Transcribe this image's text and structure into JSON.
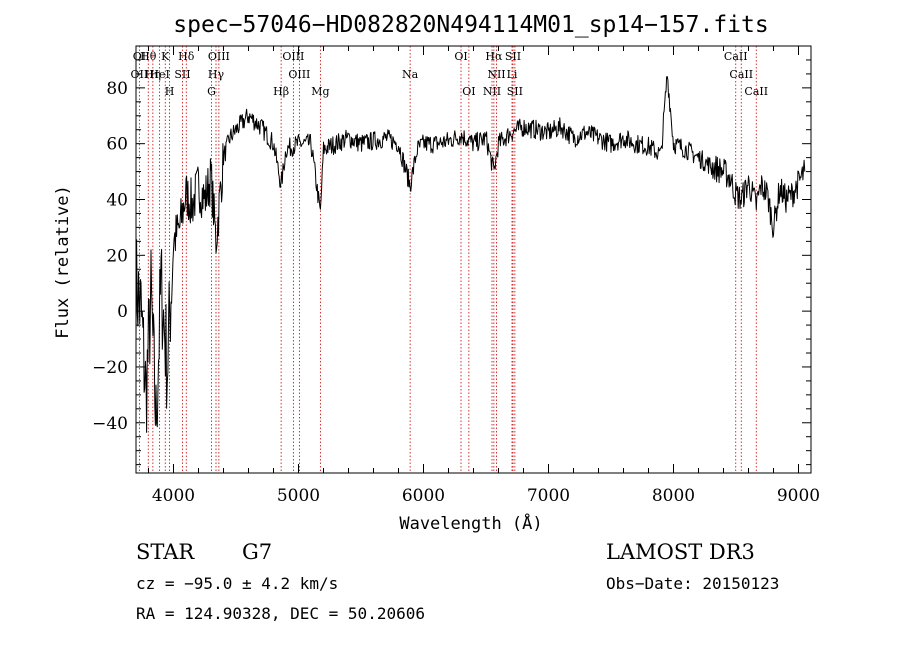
{
  "chart_data": {
    "type": "line",
    "title": "spec−57046−HD082820N494114M01_sp14−157.fits",
    "xlabel": "Wavelength (Å)",
    "ylabel": "Flux (relative)",
    "xlim": [
      3700,
      9100
    ],
    "ylim": [
      -58,
      95
    ],
    "x_ticks": [
      4000,
      5000,
      6000,
      7000,
      8000,
      9000
    ],
    "x_tick_labels": [
      "4000",
      "5000",
      "6000",
      "7000",
      "8000",
      "9000"
    ],
    "y_ticks": [
      -40,
      -20,
      0,
      20,
      40,
      60,
      80
    ],
    "y_tick_labels": [
      "−40",
      "−20",
      "0",
      "20",
      "40",
      "60",
      "80"
    ],
    "series": [
      {
        "name": "flux",
        "x": [
          3700,
          3740,
          3780,
          3820,
          3860,
          3900,
          3950,
          4000,
          4050,
          4100,
          4150,
          4200,
          4250,
          4300,
          4340,
          4400,
          4450,
          4500,
          4600,
          4700,
          4800,
          4861,
          4900,
          5000,
          5100,
          5175,
          5200,
          5300,
          5400,
          5500,
          5600,
          5700,
          5800,
          5893,
          5950,
          6000,
          6100,
          6200,
          6300,
          6400,
          6500,
          6563,
          6600,
          6700,
          6800,
          6900,
          7000,
          7100,
          7200,
          7300,
          7400,
          7500,
          7600,
          7700,
          7800,
          7900,
          7950,
          8000,
          8100,
          8200,
          8300,
          8400,
          8450,
          8498,
          8542,
          8600,
          8662,
          8700,
          8750,
          8800,
          8850,
          8900,
          8950,
          9000,
          9050
        ],
        "y": [
          10,
          0,
          -30,
          5,
          -40,
          10,
          -20,
          25,
          30,
          42,
          38,
          45,
          40,
          48,
          25,
          55,
          62,
          65,
          70,
          66,
          60,
          45,
          58,
          60,
          60,
          35,
          58,
          60,
          62,
          60,
          61,
          62,
          60,
          45,
          58,
          60,
          60,
          61,
          63,
          60,
          62,
          50,
          60,
          64,
          66,
          65,
          64,
          66,
          62,
          64,
          62,
          60,
          62,
          60,
          59,
          56,
          85,
          60,
          58,
          55,
          52,
          50,
          48,
          42,
          40,
          46,
          38,
          45,
          42,
          30,
          44,
          40,
          42,
          46,
          50
        ]
      }
    ],
    "line_labels": [
      {
        "label": "Hθ",
        "wavelength": 3798
      },
      {
        "label": "K",
        "wavelength": 3934
      },
      {
        "label": "Hδ",
        "wavelength": 4102
      },
      {
        "label": "OIII",
        "wavelength": 4363
      },
      {
        "label": "OIII",
        "wavelength": 4959
      },
      {
        "label": "OI",
        "wavelength": 6300
      },
      {
        "label": "Hα",
        "wavelength": 6563
      },
      {
        "label": "SII",
        "wavelength": 6716
      },
      {
        "label": "CaII",
        "wavelength": 8498
      },
      {
        "label": "OI",
        "wavelength": 3727
      },
      {
        "label": "HeI",
        "wavelength": 3889
      },
      {
        "label": "SII",
        "wavelength": 4072
      },
      {
        "label": "Hγ",
        "wavelength": 4340
      },
      {
        "label": "OIII",
        "wavelength": 5007
      },
      {
        "label": "Na",
        "wavelength": 5893
      },
      {
        "label": "NII",
        "wavelength": 6584
      },
      {
        "label": "Li",
        "wavelength": 6708
      },
      {
        "label": "CaII",
        "wavelength": 8542
      },
      {
        "label": "OII",
        "wavelength": 3727
      },
      {
        "label": "Hη",
        "wavelength": 3835
      },
      {
        "label": "H",
        "wavelength": 3968
      },
      {
        "label": "G",
        "wavelength": 4304
      },
      {
        "label": "Hβ",
        "wavelength": 4861
      },
      {
        "label": "Mg",
        "wavelength": 5175
      },
      {
        "label": "OI",
        "wavelength": 6363
      },
      {
        "label": "NII",
        "wavelength": 6548
      },
      {
        "label": "SII",
        "wavelength": 6731
      },
      {
        "label": "CaII",
        "wavelength": 8662
      }
    ],
    "marker_lines": [
      3727,
      3798,
      3835,
      3889,
      3934,
      3968,
      4072,
      4102,
      4304,
      4340,
      4363,
      4861,
      4959,
      5007,
      5175,
      5893,
      6300,
      6363,
      6548,
      6563,
      6584,
      6708,
      6716,
      6731,
      8498,
      8542,
      8662
    ],
    "marker_color": "#cc0000",
    "line_color": "#000000"
  },
  "info": {
    "object_class": "STAR",
    "subclass": "G7",
    "survey": "LAMOST DR3",
    "velocity": "cz = −95.0 ± 4.2 km/s",
    "obs_date": "Obs−Date: 20150123",
    "coords": "RA = 124.90328, DEC =  50.20606"
  }
}
